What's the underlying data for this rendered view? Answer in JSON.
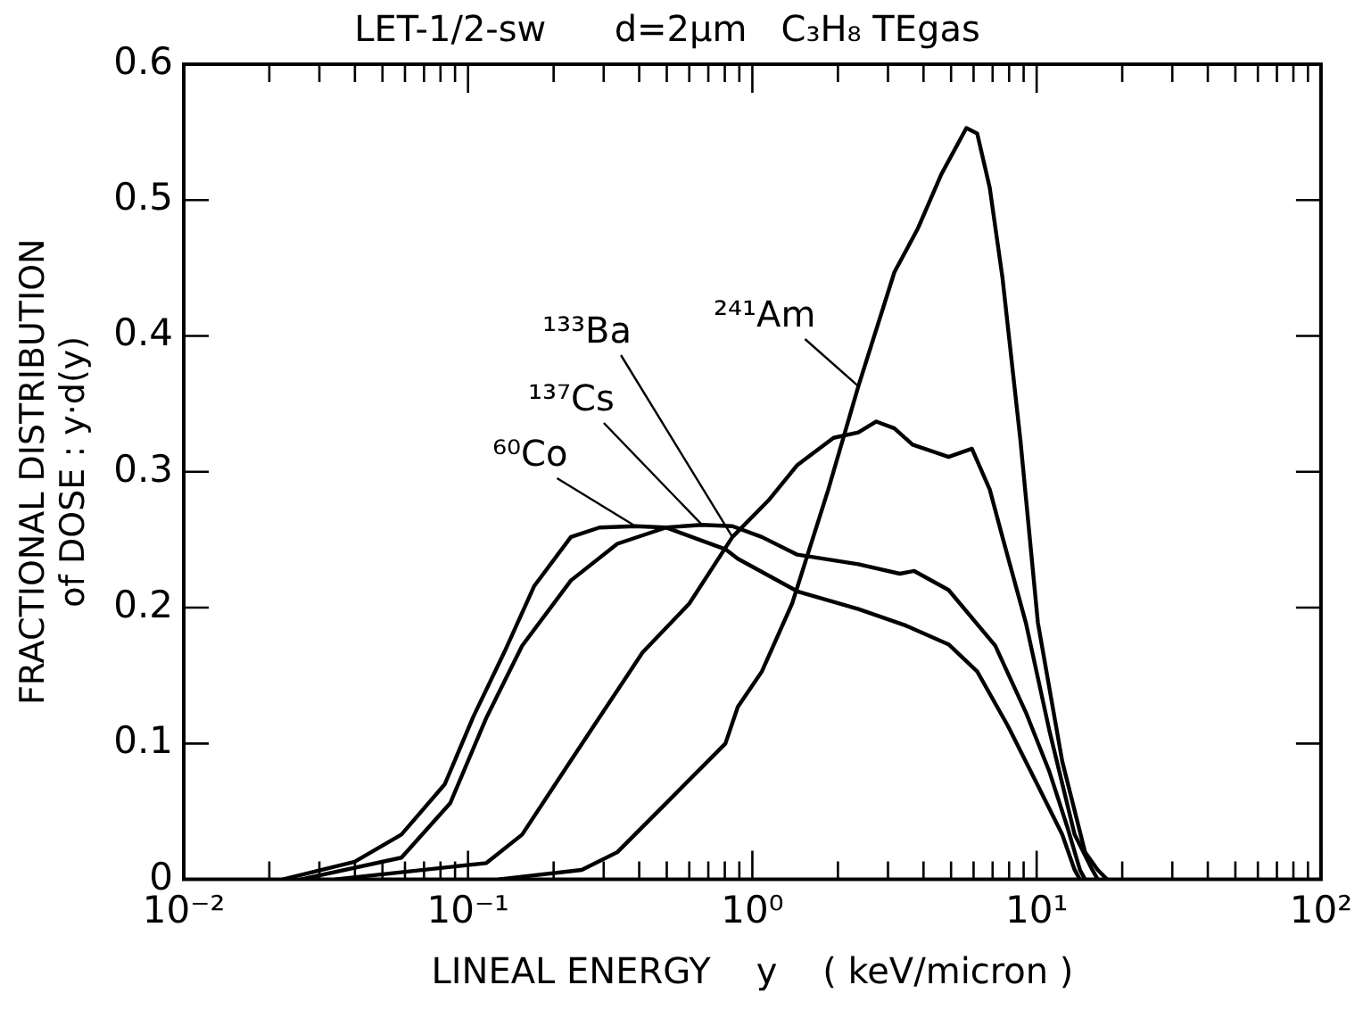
{
  "chart_data": {
    "type": "line",
    "title": "LET-1/2-sw      d=2μm   C₃H₈ TEgas",
    "xlabel": "LINEAL ENERGY    y    ( keV/micron )",
    "ylabel": "FRACTIONAL DISTRIBUTION\nof DOSE : y·d(y)",
    "log": "x",
    "grid": false,
    "legend": false,
    "marker": "none",
    "line_style": "solid",
    "xlim": [
      0.01,
      100
    ],
    "ylim": [
      0,
      0.6
    ],
    "xticks": [
      {
        "value": 0.01,
        "label": "10⁻²"
      },
      {
        "value": 0.02,
        "label": null
      },
      {
        "value": 0.03,
        "label": null
      },
      {
        "value": 0.04,
        "label": null
      },
      {
        "value": 0.05,
        "label": null
      },
      {
        "value": 0.06,
        "label": null
      },
      {
        "value": 0.07,
        "label": null
      },
      {
        "value": 0.08,
        "label": null
      },
      {
        "value": 0.09,
        "label": null
      },
      {
        "value": 0.1,
        "label": "10⁻¹"
      },
      {
        "value": 0.2,
        "label": null
      },
      {
        "value": 0.3,
        "label": null
      },
      {
        "value": 0.4,
        "label": null
      },
      {
        "value": 0.5,
        "label": null
      },
      {
        "value": 0.6,
        "label": null
      },
      {
        "value": 0.7,
        "label": null
      },
      {
        "value": 0.8,
        "label": null
      },
      {
        "value": 0.9,
        "label": null
      },
      {
        "value": 1,
        "label": "10⁰"
      },
      {
        "value": 2,
        "label": null
      },
      {
        "value": 3,
        "label": null
      },
      {
        "value": 4,
        "label": null
      },
      {
        "value": 5,
        "label": null
      },
      {
        "value": 6,
        "label": null
      },
      {
        "value": 7,
        "label": null
      },
      {
        "value": 8,
        "label": null
      },
      {
        "value": 9,
        "label": null
      },
      {
        "value": 10,
        "label": "10¹"
      },
      {
        "value": 20,
        "label": null
      },
      {
        "value": 30,
        "label": null
      },
      {
        "value": 40,
        "label": null
      },
      {
        "value": 50,
        "label": null
      },
      {
        "value": 60,
        "label": null
      },
      {
        "value": 70,
        "label": null
      },
      {
        "value": 80,
        "label": null
      },
      {
        "value": 90,
        "label": null
      },
      {
        "value": 100,
        "label": "10²"
      }
    ],
    "yticks": [
      0,
      0.1,
      0.2,
      0.3,
      0.4,
      0.5,
      0.6
    ],
    "series": [
      {
        "name": "²⁴¹Am",
        "color": "#000000",
        "x": [
          0.128,
          0.251,
          0.335,
          0.497,
          0.804,
          0.889,
          1.08,
          1.38,
          1.85,
          2.36,
          3.16,
          3.82,
          4.62,
          5.66,
          6.18,
          6.84,
          7.58,
          8.77,
          10.1,
          12.3,
          14.8,
          16.4,
          17.7
        ],
        "values": [
          0,
          0.007,
          0.02,
          0.056,
          0.1,
          0.127,
          0.153,
          0.203,
          0.287,
          0.363,
          0.447,
          0.479,
          0.519,
          0.553,
          0.549,
          0.509,
          0.443,
          0.323,
          0.189,
          0.087,
          0.02,
          0.007,
          0
        ]
      },
      {
        "name": "¹³³Ba",
        "color": "#000000",
        "x": [
          0.034,
          0.116,
          0.155,
          0.207,
          0.277,
          0.411,
          0.6,
          0.851,
          1.14,
          1.44,
          1.93,
          2.36,
          2.73,
          3.16,
          3.66,
          4.9,
          5.92,
          6.84,
          7.58,
          9.16,
          11.1,
          13.6,
          15.7,
          16.4
        ],
        "values": [
          0,
          0.012,
          0.033,
          0.073,
          0.113,
          0.167,
          0.203,
          0.252,
          0.279,
          0.305,
          0.325,
          0.329,
          0.337,
          0.332,
          0.32,
          0.311,
          0.317,
          0.287,
          0.252,
          0.189,
          0.109,
          0.033,
          0.007,
          0
        ]
      },
      {
        "name": "¹³⁷Cs",
        "color": "#000000",
        "x": [
          0.0258,
          0.0583,
          0.0865,
          0.116,
          0.155,
          0.23,
          0.335,
          0.497,
          0.665,
          0.851,
          1.08,
          1.44,
          2.36,
          3.3,
          3.71,
          4.9,
          7.15,
          9.16,
          11.1,
          12.8,
          14.2,
          14.8
        ],
        "values": [
          0,
          0.016,
          0.056,
          0.119,
          0.172,
          0.22,
          0.247,
          0.259,
          0.261,
          0.26,
          0.252,
          0.239,
          0.232,
          0.225,
          0.227,
          0.213,
          0.172,
          0.123,
          0.079,
          0.039,
          0.007,
          0
        ]
      },
      {
        "name": "⁶⁰Co",
        "color": "#000000",
        "x": [
          0.0223,
          0.0399,
          0.0583,
          0.0828,
          0.1045,
          0.134,
          0.171,
          0.23,
          0.29,
          0.388,
          0.497,
          0.804,
          0.889,
          1.44,
          2.36,
          3.45,
          4.9,
          6.18,
          7.92,
          10.1,
          12.3,
          13.6,
          14.2
        ],
        "values": [
          0,
          0.013,
          0.033,
          0.07,
          0.12,
          0.167,
          0.216,
          0.252,
          0.259,
          0.26,
          0.259,
          0.243,
          0.236,
          0.212,
          0.199,
          0.187,
          0.173,
          0.153,
          0.113,
          0.069,
          0.033,
          0.007,
          0
        ]
      }
    ]
  }
}
